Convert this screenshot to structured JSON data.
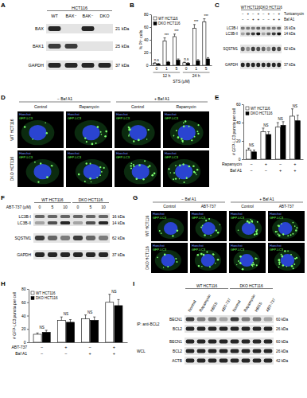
{
  "panel_labels": [
    "A",
    "B",
    "C",
    "D",
    "E",
    "F",
    "G",
    "H",
    "I"
  ],
  "chart_data": [
    {
      "type": "bar",
      "ylabel": "% PI⁺ cells",
      "xlabel": "STS (μM)",
      "categories": [
        "0",
        "1",
        "5",
        "0",
        "1",
        "5"
      ],
      "groups": [
        "12 h",
        "24 h"
      ],
      "series": [
        {
          "name": "WT HCT116",
          "color": "#ffffff",
          "values": [
            3,
            38,
            45,
            4,
            58,
            68
          ],
          "errors": [
            1,
            5,
            4,
            1,
            6,
            5
          ]
        },
        {
          "name": "DKO HCT116",
          "color": "#000000",
          "values": [
            2,
            5,
            8,
            3,
            7,
            10
          ],
          "errors": [
            1,
            1,
            2,
            1,
            2,
            2
          ]
        }
      ],
      "annotations": [
        "n.s",
        "***",
        "***",
        "n.s",
        "***",
        "***"
      ],
      "ylim": [
        0,
        80
      ],
      "yticks": [
        0,
        20,
        40,
        60,
        80
      ],
      "legend": "top-left"
    },
    {
      "type": "bar",
      "ylabel": "# GFP-LC3 puncta per cell",
      "categories": [
        null,
        null,
        null,
        null
      ],
      "condition_rows": [
        {
          "label": "Rapamycin",
          "values": [
            "−",
            "+",
            "−",
            "+"
          ]
        },
        {
          "label": "Baf A1",
          "values": [
            "−",
            "−",
            "+",
            "+"
          ]
        }
      ],
      "series": [
        {
          "name": "WT HCT116",
          "color": "#ffffff",
          "values": [
            10,
            30,
            35,
            47
          ],
          "errors": [
            2,
            4,
            5,
            8
          ]
        },
        {
          "name": "DKO HCT116",
          "color": "#000000",
          "values": [
            8,
            27,
            37,
            42
          ],
          "errors": [
            2,
            3,
            4,
            6
          ]
        }
      ],
      "annotations": [
        "NS",
        "NS",
        "NS",
        "NS"
      ],
      "ylim": [
        0,
        60
      ],
      "yticks": [
        0,
        20,
        40,
        60
      ],
      "legend": "top-left"
    },
    {
      "type": "bar",
      "ylabel": "# GFP-LC3 puncta per cell",
      "categories": [
        null,
        null,
        null,
        null
      ],
      "condition_rows": [
        {
          "label": "ABT-737",
          "values": [
            "−",
            "+",
            "−",
            "+"
          ]
        },
        {
          "label": "Baf A1",
          "values": [
            "−",
            "−",
            "+",
            "+"
          ]
        }
      ],
      "series": [
        {
          "name": "WT HCT116",
          "color": "#ffffff",
          "values": [
            12,
            33,
            35,
            60
          ],
          "errors": [
            2,
            5,
            6,
            12
          ]
        },
        {
          "name": "DKO HCT116",
          "color": "#000000",
          "values": [
            15,
            30,
            33,
            55
          ],
          "errors": [
            3,
            4,
            5,
            9
          ]
        }
      ],
      "annotations": [
        "NS",
        "NS",
        "NS",
        "NS"
      ],
      "ylim": [
        0,
        80
      ],
      "yticks": [
        0,
        20,
        40,
        60,
        80
      ],
      "legend": "top-left"
    }
  ],
  "blots": [
    {
      "groups": [
        {
          "label": "HCT116",
          "lanes": [
            "WT",
            "BAX⁻",
            "BAK⁻",
            "DKO"
          ]
        }
      ],
      "rows": [
        {
          "name": "BAX",
          "kda": "21 kDa",
          "bands": [
            0.9,
            0,
            0.9,
            0
          ]
        },
        {
          "name": "BAK1",
          "kda": "25 kDa",
          "bands": [
            0.8,
            0.8,
            0,
            0
          ]
        },
        {
          "name": "GAPDH",
          "kda": "37 kDa",
          "bands": [
            0.9,
            0.9,
            0.9,
            0.9
          ]
        }
      ]
    },
    {
      "groups": [
        {
          "label": "WT HCT116",
          "conditions": [
            [
              "−",
              "+",
              "−",
              "+"
            ],
            [
              "−",
              "−",
              "+",
              "+"
            ]
          ]
        },
        {
          "label": "DKO HCT116",
          "conditions": [
            [
              "−",
              "+",
              "−",
              "+"
            ],
            [
              "−",
              "−",
              "+",
              "+"
            ]
          ]
        }
      ],
      "condition_labels": [
        "Tunicamycin",
        "Baf A1"
      ],
      "rows": [
        {
          "name": "LC3B-I",
          "kda": "16 kDa",
          "bands": [
            0.5,
            0.5,
            0.5,
            0.6,
            0.5,
            0.5,
            0.5,
            0.6
          ]
        },
        {
          "name": "LC3B-II",
          "kda": "14 kDa",
          "bands": [
            0.3,
            0.6,
            0.8,
            1,
            0.3,
            0.6,
            0.8,
            1
          ]
        },
        {
          "name": "SQSTM1",
          "kda": "62 kDa",
          "bands": [
            0.6,
            0.4,
            0.8,
            0.7,
            0.6,
            0.4,
            0.8,
            0.7
          ]
        },
        {
          "name": "GAPDH",
          "kda": "37 kDa",
          "bands": [
            0.9,
            0.9,
            0.9,
            0.9,
            0.9,
            0.9,
            0.9,
            0.9
          ]
        }
      ]
    },
    {
      "groups": [
        {
          "label": "WT HCT116",
          "conditions": [
            [
              "0",
              "5",
              "10"
            ]
          ]
        },
        {
          "label": "DKO HCT116",
          "conditions": [
            [
              "0",
              "5",
              "10"
            ]
          ]
        }
      ],
      "condition_labels": [
        "ABT-737 (μM)"
      ],
      "rows": [
        {
          "name": "LC3B-I",
          "kda": "16 kDa",
          "bands": [
            0.6,
            0.6,
            0.6,
            0.6,
            0.6,
            0.6
          ]
        },
        {
          "name": "LC3B-II",
          "kda": "14 kDa",
          "bands": [
            0.3,
            0.7,
            0.9,
            0.3,
            0.7,
            0.9
          ]
        },
        {
          "name": "SQSTM1",
          "kda": "62 kDa",
          "bands": [
            0.8,
            0.6,
            0.5,
            0.8,
            0.6,
            0.5
          ]
        },
        {
          "name": "GAPDH",
          "kda": "37 kDa",
          "bands": [
            0.9,
            0.9,
            0.9,
            0.9,
            0.9,
            0.9
          ]
        }
      ]
    },
    {
      "groups": [
        {
          "label": "WT HCT116",
          "lanes": [
            "Normal",
            "Rapamycin",
            "HBSS",
            "ABT-737"
          ]
        },
        {
          "label": "DKO HCT116",
          "lanes": [
            "Normal",
            "Rapamycin",
            "HBSS",
            "ABT-737"
          ]
        }
      ],
      "sections": [
        {
          "label": "IP: anti-BCL2",
          "rows": [
            {
              "name": "BECN1",
              "kda": "60 kDa",
              "bands": [
                0.8,
                0.5,
                0.5,
                0.3,
                0.8,
                0.5,
                0.5,
                0.3
              ]
            },
            {
              "name": "BCL2",
              "kda": "26 kDa",
              "bands": [
                0.9,
                0.9,
                0.9,
                0.9,
                0.9,
                0.9,
                0.9,
                0.9
              ]
            }
          ]
        },
        {
          "label": "WCL",
          "rows": [
            {
              "name": "BECN1",
              "kda": "60 kDa",
              "bands": [
                0.9,
                0.9,
                0.9,
                0.9,
                0.9,
                0.9,
                0.9,
                0.9
              ]
            },
            {
              "name": "BCL2",
              "kda": "26 kDa",
              "bands": [
                0.9,
                0.9,
                0.9,
                0.9,
                0.9,
                0.9,
                0.9,
                0.9
              ]
            },
            {
              "name": "ACTB",
              "kda": "42 kDa",
              "bands": [
                0.9,
                0.9,
                0.9,
                0.9,
                0.9,
                0.9,
                0.9,
                0.9
              ]
            }
          ]
        }
      ]
    }
  ],
  "micrographs": [
    {
      "groups": [
        {
          "label": "− Baf A1",
          "columns": [
            "Control",
            "Rapamycin"
          ]
        },
        {
          "label": "+ Baf A1",
          "columns": [
            "Control",
            "Rapamycin"
          ]
        }
      ],
      "rows": [
        "WT HCT116",
        "DKO HCT116"
      ],
      "channels": [
        "Hoechst",
        "GFP-LC3"
      ]
    },
    {
      "groups": [
        {
          "label": "− Baf A1",
          "columns": [
            "Control",
            "ABT-737"
          ]
        },
        {
          "label": "+ Baf A1",
          "columns": [
            "Control",
            "ABT-737"
          ]
        }
      ],
      "rows": [
        "WT HCT116",
        "DKO HCT116"
      ],
      "channels": [
        "Hoechst",
        "GFP-LC3"
      ]
    }
  ]
}
